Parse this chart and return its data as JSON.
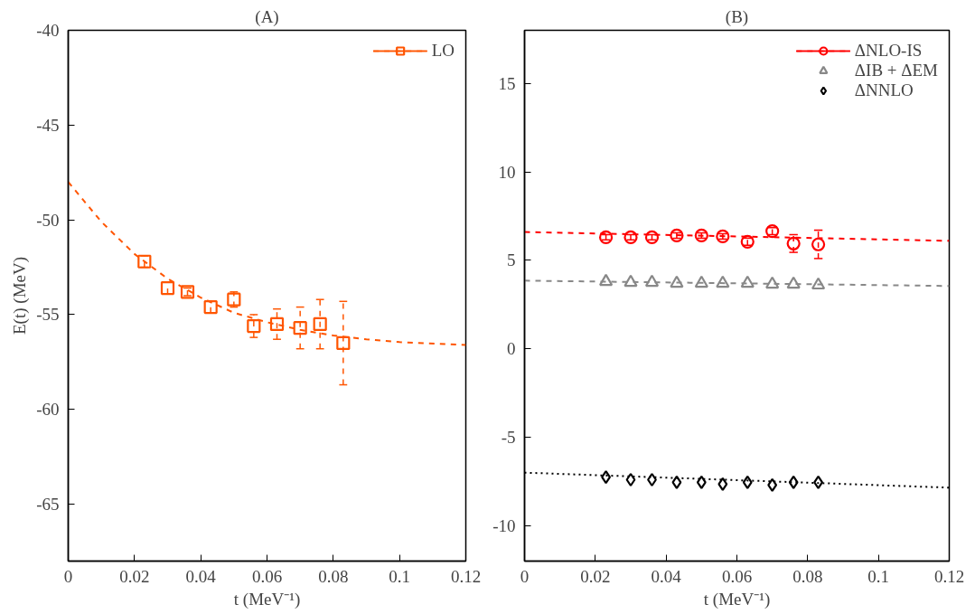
{
  "chart_data": [
    {
      "type": "scatter",
      "title": "(A)",
      "xlabel": "t (MeV⁻¹)",
      "ylabel": "E(t) (MeV)",
      "xlim": [
        0,
        0.12
      ],
      "ylim": [
        -68,
        -40
      ],
      "xticks": [
        0,
        0.02,
        0.04,
        0.06,
        0.08,
        0.1,
        0.12
      ],
      "yticks": [
        -65,
        -60,
        -55,
        -50,
        -45,
        -40
      ],
      "grid": false,
      "legend": "top right",
      "series": [
        {
          "name": "LO",
          "color": "#ff5500",
          "marker": "square",
          "line_style": "dashed",
          "x": [
            0.023,
            0.03,
            0.036,
            0.043,
            0.05,
            0.056,
            0.063,
            0.07,
            0.076,
            0.083
          ],
          "values": [
            -52.2,
            -53.6,
            -53.8,
            -54.6,
            -54.2,
            -55.6,
            -55.5,
            -55.7,
            -55.5,
            -56.5
          ],
          "errors": [
            0.3,
            0.3,
            0.2,
            0.3,
            0.4,
            0.6,
            0.8,
            1.1,
            1.3,
            2.2
          ]
        },
        {
          "type": "line",
          "color": "#ff5500",
          "line_style": "dashed",
          "x": [
            0,
            0.01,
            0.02,
            0.03,
            0.04,
            0.05,
            0.06,
            0.07,
            0.08,
            0.09,
            0.1,
            0.12
          ],
          "values": [
            -48.0,
            -50.1,
            -51.8,
            -53.1,
            -54.1,
            -54.9,
            -55.4,
            -55.8,
            -56.1,
            -56.3,
            -56.45,
            -56.6
          ]
        }
      ]
    },
    {
      "type": "scatter",
      "title": "(B)",
      "xlabel": "t (MeV⁻¹)",
      "xlim": [
        0,
        0.12
      ],
      "ylim": [
        -12,
        18
      ],
      "xticks": [
        0,
        0.02,
        0.04,
        0.06,
        0.08,
        0.1,
        0.12
      ],
      "yticks": [
        -10,
        -5,
        0,
        5,
        10,
        15
      ],
      "grid": false,
      "legend": "top right",
      "series": [
        {
          "name": "ΔNLO-IS",
          "color": "#ff0000",
          "marker": "circle",
          "line_style": "dashed",
          "x": [
            0.023,
            0.03,
            0.036,
            0.043,
            0.05,
            0.056,
            0.063,
            0.07,
            0.076,
            0.083
          ],
          "values": [
            6.3,
            6.3,
            6.3,
            6.4,
            6.4,
            6.35,
            6.05,
            6.65,
            5.95,
            5.9
          ],
          "errors": [
            0.15,
            0.15,
            0.15,
            0.15,
            0.15,
            0.15,
            0.2,
            0.2,
            0.5,
            0.8
          ]
        },
        {
          "name": "ΔIB + ΔEM",
          "color": "#888888",
          "marker": "triangle",
          "line_style": "dashed",
          "x": [
            0.023,
            0.03,
            0.036,
            0.043,
            0.05,
            0.056,
            0.063,
            0.07,
            0.076,
            0.083
          ],
          "values": [
            3.8,
            3.75,
            3.75,
            3.7,
            3.7,
            3.7,
            3.7,
            3.65,
            3.65,
            3.6
          ]
        },
        {
          "name": "ΔNNLO",
          "color": "#000000",
          "marker": "diamond",
          "line_style": "dotted",
          "x": [
            0.023,
            0.03,
            0.036,
            0.043,
            0.05,
            0.056,
            0.063,
            0.07,
            0.076,
            0.083
          ],
          "values": [
            -7.25,
            -7.4,
            -7.4,
            -7.55,
            -7.55,
            -7.65,
            -7.55,
            -7.7,
            -7.55,
            -7.55
          ]
        },
        {
          "type": "line",
          "color": "#ff0000",
          "line_style": "dashed",
          "x": [
            0,
            0.12
          ],
          "values": [
            6.6,
            6.1
          ]
        },
        {
          "type": "line",
          "color": "#888888",
          "line_style": "dashed",
          "x": [
            0,
            0.12
          ],
          "values": [
            3.85,
            3.55
          ]
        },
        {
          "type": "line",
          "color": "#000000",
          "line_style": "dotted",
          "x": [
            0,
            0.12
          ],
          "values": [
            -7.0,
            -7.85
          ]
        }
      ]
    }
  ]
}
